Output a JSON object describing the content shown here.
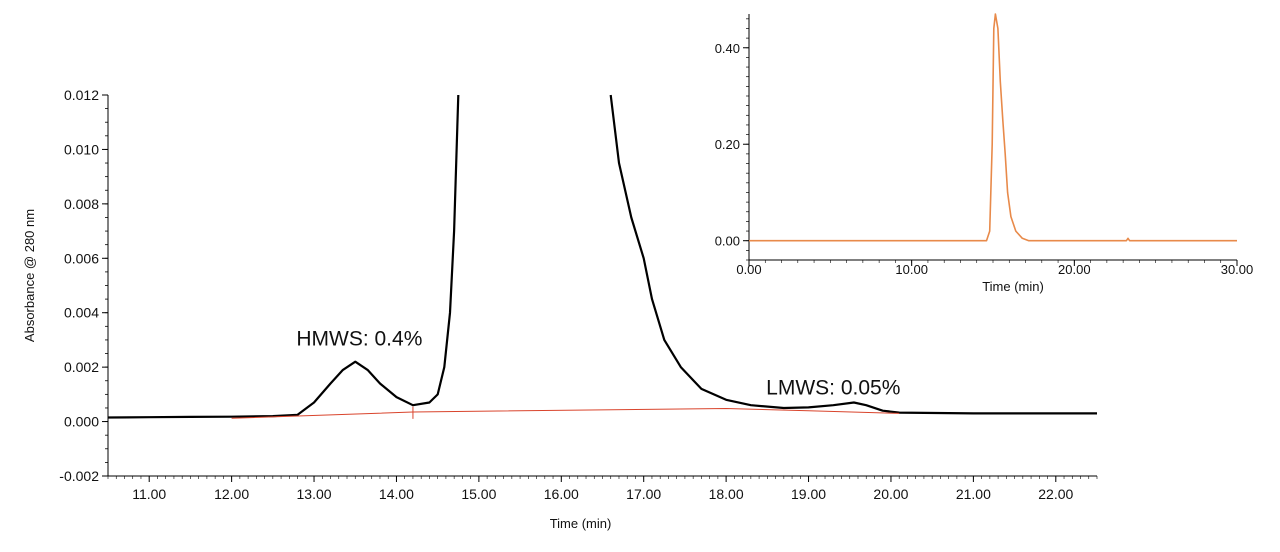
{
  "chart_data": [
    {
      "type": "line",
      "xlabel": "Time (min)",
      "ylabel": "Absorbance @ 280 nm",
      "xlim": [
        10.5,
        22.5
      ],
      "ylim": [
        -0.002,
        0.012
      ],
      "grid": false,
      "x_ticks": [
        "11.00",
        "12.00",
        "13.00",
        "14.00",
        "15.00",
        "16.00",
        "17.00",
        "18.00",
        "19.00",
        "20.00",
        "21.00",
        "22.00"
      ],
      "y_ticks": [
        "-0.002",
        "0.000",
        "0.002",
        "0.004",
        "0.006",
        "0.008",
        "0.010",
        "0.012"
      ],
      "series": [
        {
          "color": "#000000",
          "segments": [
            [
              [
                10.5,
                0.00015
              ],
              [
                11.0,
                0.00016
              ],
              [
                11.5,
                0.00017
              ],
              [
                12.0,
                0.00018
              ],
              [
                12.5,
                0.0002
              ],
              [
                12.8,
                0.00025
              ],
              [
                13.0,
                0.0007
              ],
              [
                13.2,
                0.0014
              ],
              [
                13.35,
                0.0019
              ],
              [
                13.5,
                0.0022
              ],
              [
                13.65,
                0.0019
              ],
              [
                13.8,
                0.0014
              ],
              [
                14.0,
                0.0009
              ],
              [
                14.2,
                0.0006
              ],
              [
                14.4,
                0.0007
              ],
              [
                14.5,
                0.001
              ],
              [
                14.58,
                0.002
              ],
              [
                14.65,
                0.004
              ],
              [
                14.7,
                0.007
              ],
              [
                14.75,
                0.012
              ]
            ],
            [
              [
                16.6,
                0.012
              ],
              [
                16.7,
                0.0095
              ],
              [
                16.85,
                0.0075
              ],
              [
                17.0,
                0.006
              ],
              [
                17.1,
                0.0045
              ],
              [
                17.25,
                0.003
              ],
              [
                17.45,
                0.002
              ],
              [
                17.7,
                0.0012
              ],
              [
                18.0,
                0.0008
              ],
              [
                18.3,
                0.0006
              ],
              [
                18.7,
                0.0005
              ],
              [
                19.0,
                0.00052
              ],
              [
                19.3,
                0.0006
              ],
              [
                19.55,
                0.0007
              ],
              [
                19.7,
                0.0006
              ],
              [
                19.9,
                0.0004
              ],
              [
                20.1,
                0.00033
              ],
              [
                21.0,
                0.0003
              ],
              [
                22.0,
                0.0003
              ],
              [
                22.5,
                0.0003
              ]
            ]
          ]
        },
        {
          "color": "#d9442c",
          "segments": [
            [
              [
                12.0,
                0.00012
              ],
              [
                14.2,
                0.00035
              ],
              [
                18.0,
                0.00048
              ],
              [
                19.0,
                0.0004
              ],
              [
                20.1,
                0.0003
              ]
            ]
          ]
        }
      ],
      "annotations": [
        {
          "text": "HMWS: 0.4%",
          "x": 13.55,
          "y": 0.0028
        },
        {
          "text": "LMWS: 0.05%",
          "x": 19.3,
          "y": 0.001
        }
      ]
    },
    {
      "type": "line",
      "xlabel": "Time (min)",
      "ylabel": "",
      "xlim": [
        0,
        30
      ],
      "ylim": [
        -0.04,
        0.47
      ],
      "grid": false,
      "x_ticks": [
        "0.00",
        "10.00",
        "20.00",
        "30.00"
      ],
      "y_ticks": [
        "0.00",
        "0.20",
        "0.40"
      ],
      "series": [
        {
          "color": "#e88a4a",
          "points": [
            [
              0,
              0.0
            ],
            [
              14.6,
              0.0
            ],
            [
              14.8,
              0.02
            ],
            [
              14.95,
              0.2
            ],
            [
              15.05,
              0.44
            ],
            [
              15.15,
              0.47
            ],
            [
              15.3,
              0.44
            ],
            [
              15.45,
              0.33
            ],
            [
              15.6,
              0.25
            ],
            [
              15.75,
              0.18
            ],
            [
              15.9,
              0.1
            ],
            [
              16.1,
              0.05
            ],
            [
              16.4,
              0.02
            ],
            [
              16.8,
              0.005
            ],
            [
              17.2,
              0.0
            ],
            [
              23.2,
              0.0
            ],
            [
              23.3,
              0.005
            ],
            [
              23.4,
              0.0
            ],
            [
              30.0,
              0.0
            ]
          ]
        }
      ]
    }
  ]
}
